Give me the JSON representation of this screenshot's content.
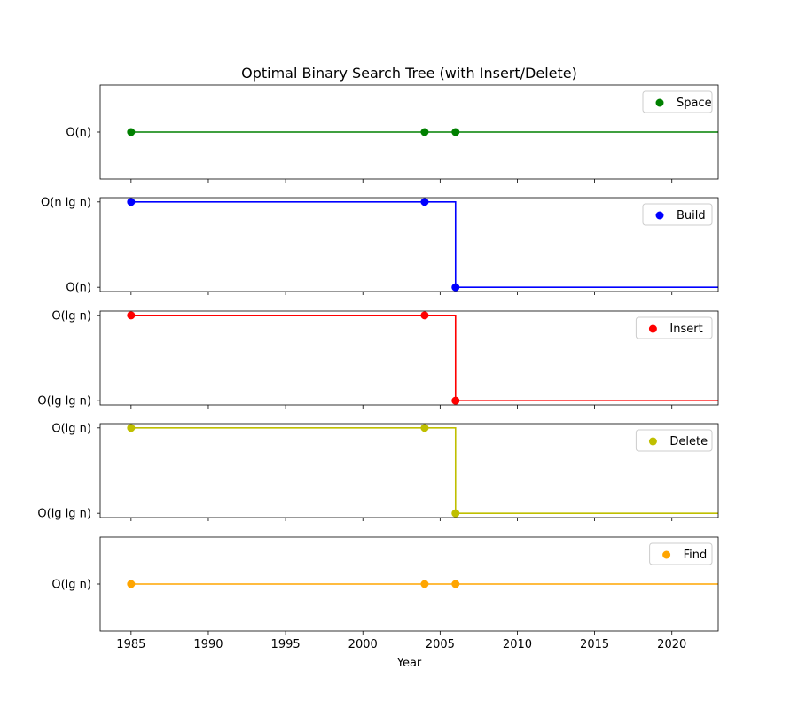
{
  "chart_data": {
    "type": "line",
    "title": "Optimal Binary Search Tree (with Insert/Delete)",
    "xlabel": "Year",
    "xlim": [
      1983,
      2023
    ],
    "xticks": [
      1985,
      1990,
      1995,
      2000,
      2005,
      2010,
      2015,
      2020
    ],
    "step": "post",
    "subplots": [
      {
        "name": "Space",
        "color": "#008000",
        "levels": [
          "O(n)"
        ],
        "points": [
          {
            "x": 1985,
            "level": "O(n)"
          },
          {
            "x": 2004,
            "level": "O(n)"
          },
          {
            "x": 2006,
            "level": "O(n)"
          }
        ],
        "legend": "upper right"
      },
      {
        "name": "Build",
        "color": "#0000ff",
        "levels": [
          "O(n)",
          "O(n lg n)"
        ],
        "points": [
          {
            "x": 1985,
            "level": "O(n lg n)"
          },
          {
            "x": 2004,
            "level": "O(n lg n)"
          },
          {
            "x": 2006,
            "level": "O(n)"
          }
        ],
        "legend": "upper right"
      },
      {
        "name": "Insert",
        "color": "#ff0000",
        "levels": [
          "O(lg lg n)",
          "O(lg n)"
        ],
        "points": [
          {
            "x": 1985,
            "level": "O(lg n)"
          },
          {
            "x": 2004,
            "level": "O(lg n)"
          },
          {
            "x": 2006,
            "level": "O(lg lg n)"
          }
        ],
        "legend": "upper right"
      },
      {
        "name": "Delete",
        "color": "#bfbf00",
        "levels": [
          "O(lg lg n)",
          "O(lg n)"
        ],
        "points": [
          {
            "x": 1985,
            "level": "O(lg n)"
          },
          {
            "x": 2004,
            "level": "O(lg n)"
          },
          {
            "x": 2006,
            "level": "O(lg lg n)"
          }
        ],
        "legend": "upper right"
      },
      {
        "name": "Find",
        "color": "#ffa500",
        "levels": [
          "O(lg n)"
        ],
        "points": [
          {
            "x": 1985,
            "level": "O(lg n)"
          },
          {
            "x": 2004,
            "level": "O(lg n)"
          },
          {
            "x": 2006,
            "level": "O(lg n)"
          }
        ],
        "legend": "upper right"
      }
    ]
  }
}
